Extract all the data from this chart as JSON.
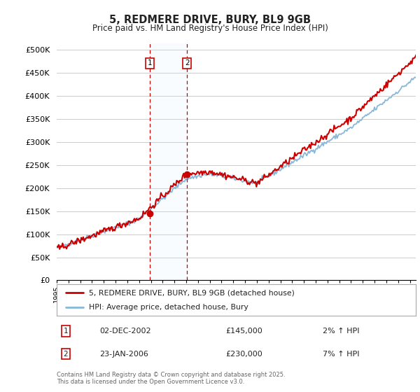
{
  "title": "5, REDMERE DRIVE, BURY, BL9 9GB",
  "subtitle": "Price paid vs. HM Land Registry's House Price Index (HPI)",
  "ytick_labels": [
    "£0",
    "£50K",
    "£100K",
    "£150K",
    "£200K",
    "£250K",
    "£300K",
    "£350K",
    "£400K",
    "£450K",
    "£500K"
  ],
  "yticks": [
    0,
    50000,
    100000,
    150000,
    200000,
    250000,
    300000,
    350000,
    400000,
    450000,
    500000
  ],
  "ylim": [
    0,
    515000
  ],
  "xlim_start": 1995,
  "xlim_end": 2025.5,
  "legend1_label": "5, REDMERE DRIVE, BURY, BL9 9GB (detached house)",
  "legend2_label": "HPI: Average price, detached house, Bury",
  "line1_color": "#cc0000",
  "line2_color": "#88b8d8",
  "annotation1_date": "02-DEC-2002",
  "annotation1_price": "£145,000",
  "annotation1_hpi": "2% ↑ HPI",
  "annotation2_date": "23-JAN-2006",
  "annotation2_price": "£230,000",
  "annotation2_hpi": "7% ↑ HPI",
  "footer": "Contains HM Land Registry data © Crown copyright and database right 2025.\nThis data is licensed under the Open Government Licence v3.0.",
  "bg_color": "#ffffff",
  "grid_color": "#cccccc",
  "shade_color": "#ddeeff",
  "marker1_x": 2002.917,
  "marker1_y": 145000,
  "marker2_x": 2006.083,
  "marker2_y": 230000,
  "dot_color": "#cc0000",
  "vline_color": "#cc0000",
  "vline_style": "--",
  "marker_box_color": "#cc0000"
}
